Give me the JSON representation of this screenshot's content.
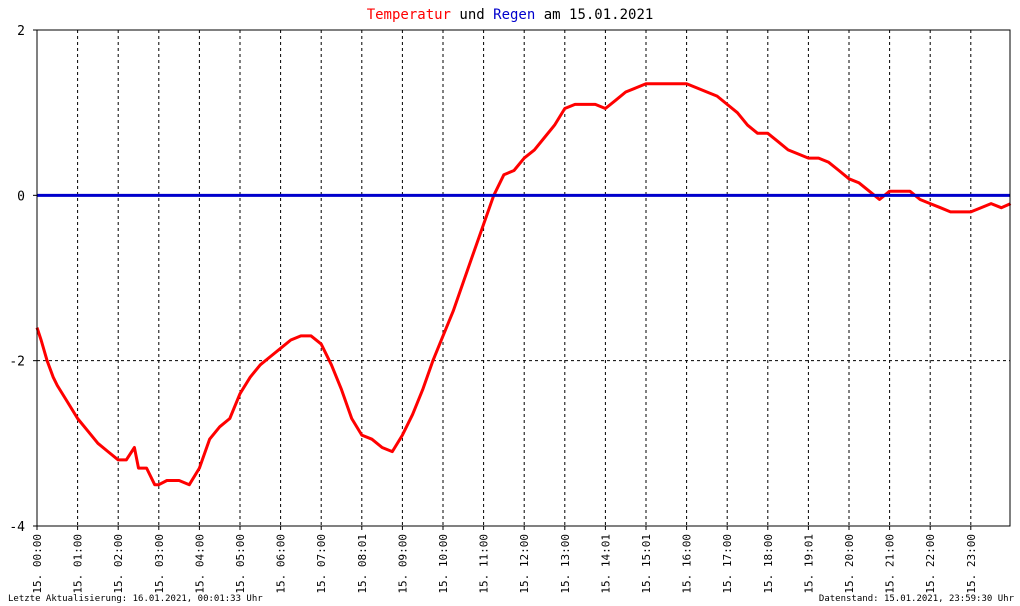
{
  "chart_data": {
    "type": "line",
    "title": {
      "part1": "Temperatur",
      "part2": " und ",
      "part3": "Regen",
      "part4": " am 15.01.2021"
    },
    "colors": {
      "temperature": "#ff0000",
      "rain": "#0000cc",
      "title_text": "#000000",
      "grid": "#000000",
      "background": "#ffffff"
    },
    "ylim": [
      -4,
      2
    ],
    "y_ticks": [
      "2",
      "0",
      "-2",
      "-4"
    ],
    "x_ticks": [
      "15. 00:00",
      "15. 01:00",
      "15. 02:00",
      "15. 03:00",
      "15. 04:00",
      "15. 05:00",
      "15. 06:00",
      "15. 07:00",
      "15. 08:01",
      "15. 09:00",
      "15. 10:00",
      "15. 11:00",
      "15. 12:00",
      "15. 13:00",
      "15. 14:01",
      "15. 15:01",
      "15. 16:00",
      "15. 17:00",
      "15. 18:00",
      "15. 19:01",
      "15. 20:00",
      "15. 21:00",
      "15. 22:00",
      "15. 23:00"
    ],
    "grid": true,
    "series": [
      {
        "name": "Temperatur",
        "x": [
          0,
          0.1,
          0.25,
          0.4,
          0.5,
          0.75,
          1.0,
          1.25,
          1.5,
          1.75,
          2.0,
          2.2,
          2.4,
          2.5,
          2.7,
          2.9,
          3.0,
          3.2,
          3.4,
          3.5,
          3.75,
          4.0,
          4.25,
          4.5,
          4.75,
          5.0,
          5.25,
          5.5,
          5.75,
          6.0,
          6.25,
          6.5,
          6.75,
          7.0,
          7.25,
          7.5,
          7.75,
          8.0,
          8.25,
          8.5,
          8.75,
          9.0,
          9.25,
          9.5,
          9.75,
          10.0,
          10.25,
          10.5,
          10.75,
          11.0,
          11.25,
          11.5,
          11.75,
          12.0,
          12.25,
          12.5,
          12.75,
          13.0,
          13.25,
          13.5,
          13.75,
          14.0,
          14.25,
          14.5,
          14.75,
          15.0,
          15.25,
          15.5,
          15.75,
          16.0,
          16.25,
          16.5,
          16.75,
          17.0,
          17.25,
          17.5,
          17.75,
          18.0,
          18.25,
          18.5,
          18.75,
          19.0,
          19.25,
          19.5,
          19.75,
          20.0,
          20.25,
          20.5,
          20.75,
          21.0,
          21.25,
          21.5,
          21.75,
          22.0,
          22.25,
          22.5,
          22.75,
          23.0,
          23.25,
          23.5,
          23.75,
          23.98
        ],
        "values": [
          -1.6,
          -1.75,
          -2.0,
          -2.2,
          -2.3,
          -2.5,
          -2.7,
          -2.85,
          -3.0,
          -3.1,
          -3.2,
          -3.2,
          -3.05,
          -3.3,
          -3.3,
          -3.5,
          -3.5,
          -3.45,
          -3.45,
          -3.45,
          -3.5,
          -3.3,
          -2.95,
          -2.8,
          -2.7,
          -2.4,
          -2.2,
          -2.05,
          -1.95,
          -1.85,
          -1.75,
          -1.7,
          -1.7,
          -1.8,
          -2.05,
          -2.35,
          -2.7,
          -2.9,
          -2.95,
          -3.05,
          -3.1,
          -2.9,
          -2.65,
          -2.35,
          -2.0,
          -1.7,
          -1.4,
          -1.05,
          -0.7,
          -0.35,
          0.0,
          0.25,
          0.3,
          0.45,
          0.55,
          0.7,
          0.85,
          1.05,
          1.1,
          1.1,
          1.1,
          1.05,
          1.15,
          1.25,
          1.3,
          1.35,
          1.35,
          1.35,
          1.35,
          1.35,
          1.3,
          1.25,
          1.2,
          1.1,
          1.0,
          0.85,
          0.75,
          0.75,
          0.65,
          0.55,
          0.5,
          0.45,
          0.45,
          0.4,
          0.3,
          0.2,
          0.15,
          0.05,
          -0.05,
          0.05,
          0.05,
          0.05,
          -0.05,
          -0.1,
          -0.15,
          -0.2,
          -0.2,
          -0.2,
          -0.15,
          -0.1,
          -0.15,
          -0.1
        ]
      },
      {
        "name": "Regen",
        "x": [
          0,
          23.98
        ],
        "values": [
          0,
          0
        ]
      }
    ]
  },
  "footer": {
    "last_update": "Letzte Aktualisierung: 16.01.2021, 00:01:33 Uhr",
    "data_status": "Datenstand: 15.01.2021, 23:59:30 Uhr"
  }
}
